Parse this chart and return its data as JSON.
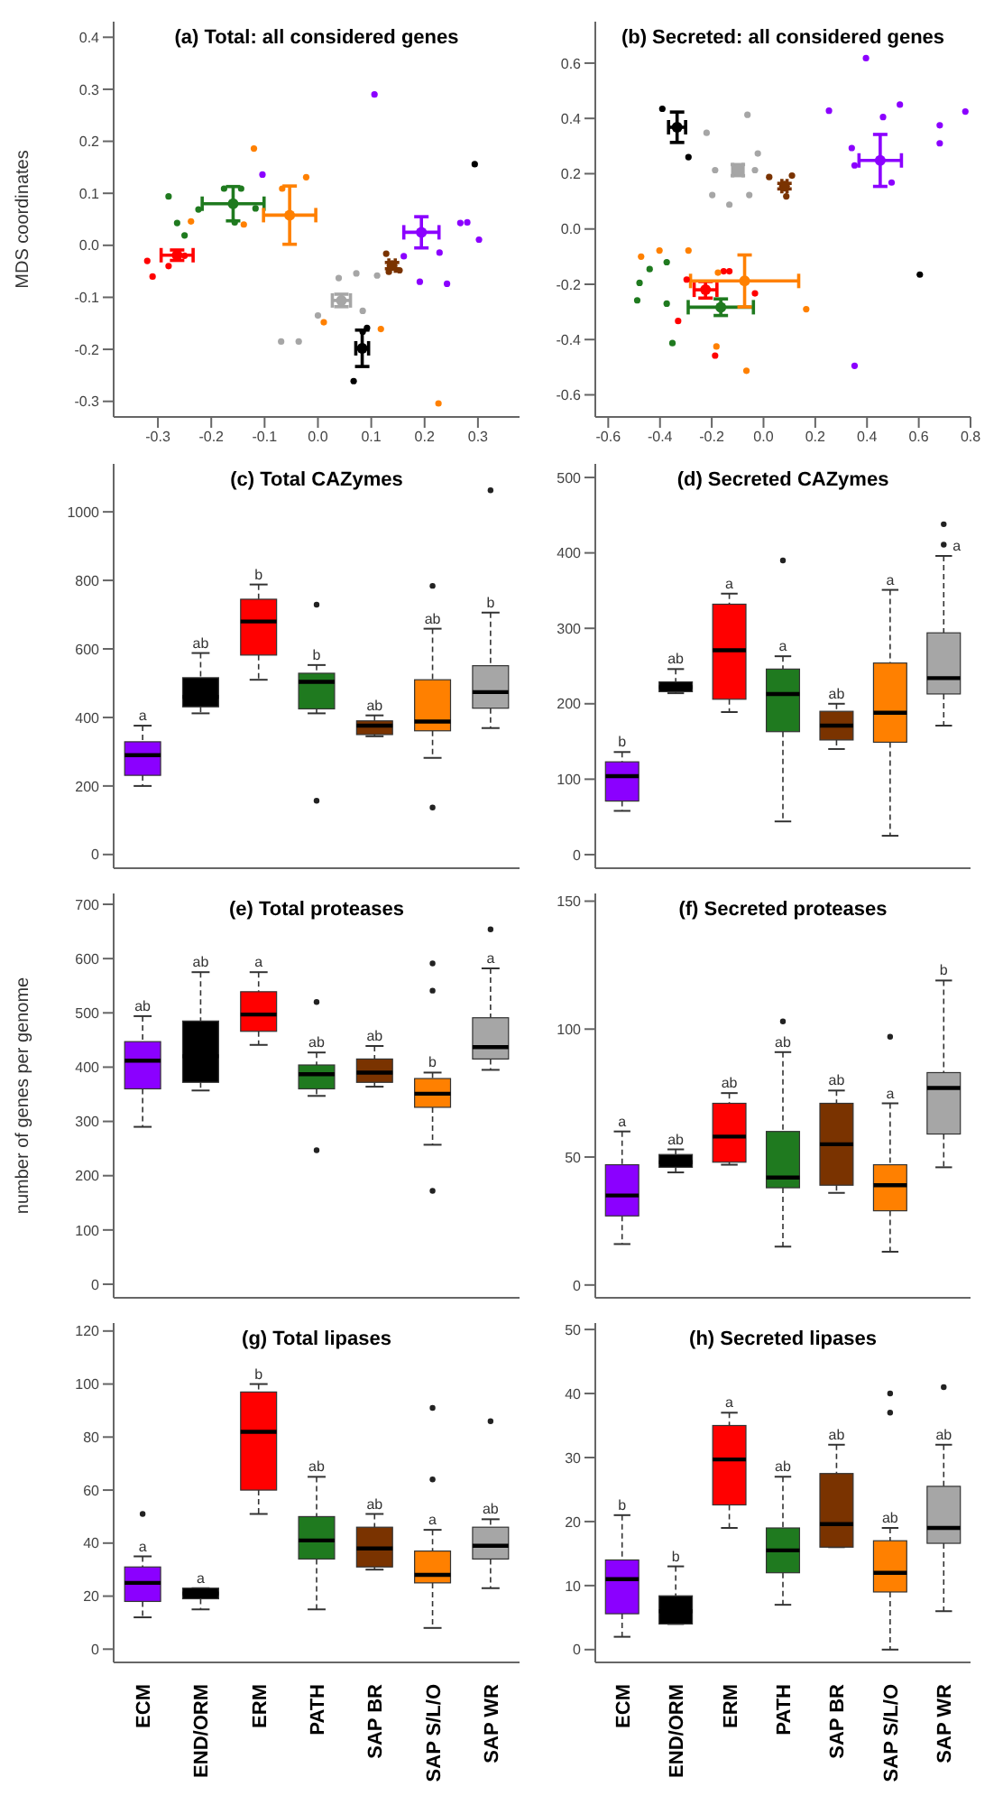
{
  "chart_data": [
    {
      "type": "scatter",
      "title": "(a) Total: all considered genes",
      "ylabel": "MDS coordinates",
      "marker": "circle",
      "xlim": [
        -0.383,
        0.378
      ],
      "ylim": [
        -0.33,
        0.43
      ],
      "xticks": [
        -0.3,
        -0.2,
        -0.1,
        {
          "value": 0,
          "label": "0.0"
        },
        0.1,
        0.2,
        0.3
      ],
      "yticks": [
        -0.3,
        -0.2,
        -0.1,
        {
          "value": 0,
          "label": "0.0"
        },
        0.1,
        0.2,
        0.3,
        0.4
      ],
      "series": [
        {
          "color": "#8b00ff",
          "x": [
            -0.104,
            0.106,
            0.161,
            0.191,
            0.228,
            0.242,
            0.267,
            0.28,
            0.302
          ],
          "values": [
            0.136,
            0.29,
            -0.021,
            -0.07,
            -0.014,
            -0.074,
            0.043,
            0.044,
            0.011
          ]
        },
        {
          "color": "#8b00ff",
          "x": [
            0.194
          ],
          "values": [
            0.025
          ],
          "xerrors": [
            0.033
          ],
          "errors": [
            0.03
          ]
        },
        {
          "color": "#000000",
          "x": [
            0.067,
            0.092,
            0.294,
            0.084
          ],
          "values": [
            -0.261,
            -0.159,
            0.156,
            -0.166
          ]
        },
        {
          "color": "#000000",
          "x": [
            0.083
          ],
          "values": [
            -0.198
          ],
          "xerrors": [
            0.012
          ],
          "errors": [
            0.035
          ]
        },
        {
          "color": "#ff0000",
          "x": [
            -0.32,
            -0.31,
            -0.28,
            -0.25
          ],
          "values": [
            -0.03,
            -0.06,
            -0.04,
            -0.02
          ]
        },
        {
          "color": "#ff0000",
          "x": [
            -0.264
          ],
          "values": [
            -0.019
          ],
          "xerrors": [
            0.03
          ],
          "errors": [
            0.01
          ]
        },
        {
          "color": "#1f7a1f",
          "x": [
            -0.28,
            -0.264,
            -0.25,
            -0.224,
            -0.176,
            -0.144,
            -0.156,
            -0.117
          ],
          "values": [
            0.094,
            0.043,
            0.019,
            0.069,
            0.109,
            0.109,
            0.044,
            0.071
          ]
        },
        {
          "color": "#1f7a1f",
          "x": [
            -0.159
          ],
          "values": [
            0.08
          ],
          "xerrors": [
            0.058
          ],
          "errors": [
            0.033
          ]
        },
        {
          "color": "#7a3300",
          "x": [
            0.128,
            0.133,
            0.153
          ],
          "values": [
            -0.016,
            -0.051,
            -0.048
          ]
        },
        {
          "color": "#7a3300",
          "x": [
            0.139
          ],
          "values": [
            -0.039
          ],
          "xerrors": [
            0.006
          ],
          "errors": [
            0.006
          ]
        },
        {
          "color": "#ff8000",
          "x": [
            -0.12,
            -0.022,
            -0.238,
            -0.139,
            0.011,
            0.118,
            0.226,
            -0.067
          ],
          "values": [
            0.186,
            0.131,
            0.046,
            0.04,
            -0.148,
            -0.161,
            -0.304,
            0.109
          ]
        },
        {
          "color": "#ff8000",
          "x": [
            -0.053
          ],
          "values": [
            0.058
          ],
          "xerrors": [
            0.049
          ],
          "errors": [
            0.056
          ]
        },
        {
          "color": "#a6a6a6",
          "x": [
            -0.069,
            -0.036,
            0.039,
            0.072,
            0,
            0.084,
            0.111
          ],
          "values": [
            -0.185,
            -0.185,
            -0.063,
            -0.054,
            -0.135,
            -0.126,
            -0.058
          ]
        },
        {
          "color": "#a6a6a6",
          "x": [
            0.044
          ],
          "values": [
            -0.106
          ],
          "xerrors": [
            0.017
          ],
          "errors": [
            0.012
          ]
        }
      ]
    },
    {
      "type": "scatter",
      "title": "(b) Secreted: all considered genes",
      "marker": "circle",
      "xlim": [
        -0.65,
        0.8
      ],
      "ylim": [
        -0.68,
        0.75
      ],
      "xticks": [
        -0.6,
        -0.4,
        -0.2,
        {
          "value": 0,
          "label": "0.0"
        },
        0.2,
        0.4,
        0.6,
        0.8
      ],
      "yticks": [
        -0.6,
        -0.4,
        -0.2,
        {
          "value": 0,
          "label": "0.0"
        },
        0.2,
        0.4,
        0.6
      ],
      "series": [
        {
          "color": "#8b00ff",
          "x": [
            0.396,
            0.253,
            0.462,
            0.527,
            0.341,
            0.352,
            0.495,
            0.681,
            0.681,
            0.78,
            0.352
          ],
          "values": [
            0.618,
            0.428,
            0.405,
            0.45,
            0.293,
            0.23,
            0.168,
            0.375,
            0.31,
            0.425,
            -0.495
          ]
        },
        {
          "color": "#8b00ff",
          "x": [
            0.451
          ],
          "values": [
            0.248
          ],
          "xerrors": [
            0.082
          ],
          "errors": [
            0.094
          ]
        },
        {
          "color": "#000000",
          "x": [
            -0.391,
            -0.29,
            0.604
          ],
          "values": [
            0.435,
            0.26,
            -0.165
          ]
        },
        {
          "color": "#000000",
          "x": [
            -0.334
          ],
          "values": [
            0.368
          ],
          "xerrors": [
            0.033
          ],
          "errors": [
            0.055
          ]
        },
        {
          "color": "#ff0000",
          "x": [
            -0.33,
            -0.297,
            -0.187,
            -0.154,
            -0.132,
            -0.033
          ],
          "values": [
            -0.333,
            -0.183,
            -0.458,
            -0.153,
            -0.153,
            -0.233
          ]
        },
        {
          "color": "#ff0000",
          "x": [
            -0.224
          ],
          "values": [
            -0.22
          ],
          "xerrors": [
            0.044
          ],
          "errors": [
            0.03
          ]
        },
        {
          "color": "#1f7a1f",
          "x": [
            -0.488,
            -0.479,
            -0.44,
            -0.374,
            -0.374,
            -0.352
          ],
          "values": [
            -0.258,
            -0.195,
            -0.145,
            -0.12,
            -0.27,
            -0.413
          ]
        },
        {
          "color": "#1f7a1f",
          "x": [
            -0.165
          ],
          "values": [
            -0.283
          ],
          "xerrors": [
            0.126
          ],
          "errors": [
            0.03
          ]
        },
        {
          "color": "#7a3300",
          "x": [
            0.022,
            0.11,
            0.088
          ],
          "values": [
            0.188,
            0.193,
            0.118
          ]
        },
        {
          "color": "#7a3300",
          "x": [
            0.081
          ],
          "values": [
            0.155
          ],
          "xerrors": [
            0.01
          ],
          "errors": [
            0.01
          ]
        },
        {
          "color": "#ff8000",
          "x": [
            -0.473,
            -0.402,
            -0.29,
            -0.182,
            -0.066,
            0.165,
            -0.176
          ],
          "values": [
            -0.1,
            -0.078,
            -0.078,
            -0.425,
            -0.513,
            -0.29,
            -0.158
          ]
        },
        {
          "color": "#ff8000",
          "x": [
            -0.073
          ],
          "values": [
            -0.188
          ],
          "xerrors": [
            0.209
          ],
          "errors": [
            0.094
          ]
        },
        {
          "color": "#a6a6a6",
          "x": [
            -0.22,
            -0.062,
            -0.187,
            -0.198,
            -0.132,
            -0.055,
            -0.022,
            -0.033
          ],
          "values": [
            0.348,
            0.413,
            0.213,
            0.123,
            0.088,
            0.123,
            0.273,
            0.213
          ]
        },
        {
          "color": "#a6a6a6",
          "x": [
            -0.099
          ],
          "values": [
            0.213
          ],
          "xerrors": [
            0.02
          ],
          "errors": [
            0.02
          ]
        }
      ]
    },
    {
      "type": "box",
      "title": "(c) Total CAZymes",
      "tick_labels": "y",
      "categories": [
        "ECM",
        "END/ORM",
        "ERM",
        "PATH",
        "SAP BR",
        "SAP S/L/O",
        "SAP WR"
      ],
      "colors": [
        "#8b00ff",
        "#000000",
        "#ff0000",
        "#1f7a1f",
        "#7a3300",
        "#ff8000",
        "#a6a6a6"
      ],
      "ylim": [
        -40,
        1140
      ],
      "yticks": [
        0,
        200,
        400,
        600,
        800,
        1000
      ],
      "boxes": [
        {
          "low": 200,
          "q1": 231,
          "median": 290,
          "q3": 329,
          "high": 376
        },
        {
          "low": 412,
          "q1": 431,
          "median": 460,
          "q3": 516,
          "high": 588
        },
        {
          "low": 510,
          "q1": 582,
          "median": 680,
          "q3": 745,
          "high": 788
        },
        {
          "low": 412,
          "q1": 425,
          "median": 504,
          "q3": 529,
          "high": 553,
          "outliers": [
            729,
            157
          ]
        },
        {
          "low": 345,
          "q1": 350,
          "median": 376,
          "q3": 390,
          "high": 406
        },
        {
          "low": 282,
          "q1": 361,
          "median": 388,
          "q3": 510,
          "high": 659,
          "outliers": [
            784,
            137
          ]
        },
        {
          "low": 369,
          "q1": 427,
          "median": 474,
          "q3": 551,
          "high": 706,
          "outliers": [
            1063
          ]
        }
      ],
      "annotations": [
        {
          "text": "a",
          "x": "ECM",
          "y": 376
        },
        {
          "text": "ab",
          "x": "END/ORM",
          "y": 588
        },
        {
          "text": "b",
          "x": "ERM",
          "y": 788
        },
        {
          "text": "b",
          "x": "PATH",
          "y": 553
        },
        {
          "text": "ab",
          "x": "SAP BR",
          "y": 406
        },
        {
          "text": "ab",
          "x": "SAP S/L/O",
          "y": 659
        },
        {
          "text": "b",
          "x": "SAP WR",
          "y": 706
        }
      ]
    },
    {
      "type": "box",
      "title": "(d) Secreted CAZymes",
      "tick_labels": "y",
      "categories": [
        "ECM",
        "END/ORM",
        "ERM",
        "PATH",
        "SAP BR",
        "SAP S/L/O",
        "SAP WR"
      ],
      "colors": [
        "#8b00ff",
        "#000000",
        "#ff0000",
        "#1f7a1f",
        "#7a3300",
        "#ff8000",
        "#a6a6a6"
      ],
      "ylim": [
        -18,
        518
      ],
      "yticks": [
        0,
        100,
        200,
        300,
        400,
        500
      ],
      "boxes": [
        {
          "low": 58,
          "q1": 71,
          "median": 104,
          "q3": 123,
          "high": 136
        },
        {
          "low": 214,
          "q1": 216,
          "median": 222,
          "q3": 229,
          "high": 246
        },
        {
          "low": 189,
          "q1": 206,
          "median": 271,
          "q3": 332,
          "high": 346
        },
        {
          "low": 44,
          "q1": 163,
          "median": 213,
          "q3": 246,
          "high": 263,
          "outliers": [
            390
          ]
        },
        {
          "low": 140,
          "q1": 152,
          "median": 171,
          "q3": 190,
          "high": 200
        },
        {
          "low": 25,
          "q1": 149,
          "median": 188,
          "q3": 254,
          "high": 351
        },
        {
          "low": 171,
          "q1": 213,
          "median": 234,
          "q3": 294,
          "high": 396,
          "outliers": [
            411,
            438
          ]
        }
      ],
      "annotations": [
        {
          "text": "b",
          "x": "ECM",
          "y": 136
        },
        {
          "text": "ab",
          "x": "END/ORM",
          "y": 246
        },
        {
          "text": "a",
          "x": "ERM",
          "y": 346
        },
        {
          "text": "a",
          "x": "PATH",
          "y": 263
        },
        {
          "text": "ab",
          "x": "SAP BR",
          "y": 200
        },
        {
          "text": "a",
          "x": "SAP S/L/O",
          "y": 351
        },
        {
          "text": "a",
          "x": "SAP WR",
          "y": 396
        }
      ]
    },
    {
      "type": "box",
      "title": "(e) Total proteases",
      "ylabel": "number of genes per genome",
      "tick_labels": "y",
      "categories": [
        "ECM",
        "END/ORM",
        "ERM",
        "PATH",
        "SAP BR",
        "SAP S/L/O",
        "SAP WR"
      ],
      "colors": [
        "#8b00ff",
        "#000000",
        "#ff0000",
        "#1f7a1f",
        "#7a3300",
        "#ff8000",
        "#a6a6a6"
      ],
      "ylim": [
        -25,
        720
      ],
      "yticks": [
        0,
        100,
        200,
        300,
        400,
        500,
        600,
        700
      ],
      "boxes": [
        {
          "low": 290,
          "q1": 360,
          "median": 412,
          "q3": 447,
          "high": 494
        },
        {
          "low": 357,
          "q1": 372,
          "median": 420,
          "q3": 485,
          "high": 575
        },
        {
          "low": 441,
          "q1": 466,
          "median": 497,
          "q3": 539,
          "high": 575
        },
        {
          "low": 347,
          "q1": 360,
          "median": 387,
          "q3": 404,
          "high": 427,
          "outliers": [
            520,
            247
          ]
        },
        {
          "low": 364,
          "q1": 372,
          "median": 390,
          "q3": 415,
          "high": 439
        },
        {
          "low": 257,
          "q1": 326,
          "median": 351,
          "q3": 379,
          "high": 390,
          "outliers": [
            591,
            541,
            172
          ]
        },
        {
          "low": 395,
          "q1": 415,
          "median": 437,
          "q3": 491,
          "high": 582,
          "outliers": [
            654
          ]
        }
      ],
      "annotations": [
        {
          "text": "ab",
          "x": "ECM",
          "y": 494
        },
        {
          "text": "ab",
          "x": "END/ORM",
          "y": 575
        },
        {
          "text": "a",
          "x": "ERM",
          "y": 575
        },
        {
          "text": "ab",
          "x": "PATH",
          "y": 427
        },
        {
          "text": "ab",
          "x": "SAP BR",
          "y": 439
        },
        {
          "text": "b",
          "x": "SAP S/L/O",
          "y": 390
        },
        {
          "text": "a",
          "x": "SAP WR",
          "y": 582
        }
      ]
    },
    {
      "type": "box",
      "title": "(f) Secreted proteases",
      "tick_labels": "y",
      "categories": [
        "ECM",
        "END/ORM",
        "ERM",
        "PATH",
        "SAP BR",
        "SAP S/L/O",
        "SAP WR"
      ],
      "colors": [
        "#8b00ff",
        "#000000",
        "#ff0000",
        "#1f7a1f",
        "#7a3300",
        "#ff8000",
        "#a6a6a6"
      ],
      "ylim": [
        -5,
        153
      ],
      "yticks": [
        0,
        50,
        100,
        150
      ],
      "boxes": [
        {
          "low": 16,
          "q1": 27,
          "median": 35,
          "q3": 47,
          "high": 60
        },
        {
          "low": 44,
          "q1": 46,
          "median": 48,
          "q3": 51,
          "high": 53
        },
        {
          "low": 47,
          "q1": 48,
          "median": 58,
          "q3": 71,
          "high": 75
        },
        {
          "low": 15,
          "q1": 38,
          "median": 42,
          "q3": 60,
          "high": 91,
          "outliers": [
            103
          ]
        },
        {
          "low": 36,
          "q1": 39,
          "median": 55,
          "q3": 71,
          "high": 76
        },
        {
          "low": 13,
          "q1": 29,
          "median": 39,
          "q3": 47,
          "high": 71,
          "outliers": [
            97
          ]
        },
        {
          "low": 46,
          "q1": 59,
          "median": 77,
          "q3": 83,
          "high": 119
        }
      ],
      "annotations": [
        {
          "text": "a",
          "x": "ECM",
          "y": 60
        },
        {
          "text": "ab",
          "x": "END/ORM",
          "y": 53
        },
        {
          "text": "ab",
          "x": "ERM",
          "y": 75
        },
        {
          "text": "ab",
          "x": "PATH",
          "y": 91
        },
        {
          "text": "ab",
          "x": "SAP BR",
          "y": 76
        },
        {
          "text": "a",
          "x": "SAP S/L/O",
          "y": 71
        },
        {
          "text": "b",
          "x": "SAP WR",
          "y": 119
        }
      ]
    },
    {
      "type": "box",
      "title": "(g) Total lipases",
      "categories": [
        "ECM",
        "END/ORM",
        "ERM",
        "PATH",
        "SAP BR",
        "SAP S/L/O",
        "SAP WR"
      ],
      "colors": [
        "#8b00ff",
        "#000000",
        "#ff0000",
        "#1f7a1f",
        "#7a3300",
        "#ff8000",
        "#a6a6a6"
      ],
      "ylim": [
        -5,
        123
      ],
      "yticks": [
        0,
        20,
        40,
        60,
        80,
        100,
        120
      ],
      "boxes": [
        {
          "low": 12,
          "q1": 18,
          "median": 25,
          "q3": 31,
          "high": 35,
          "outliers": [
            51
          ]
        },
        {
          "low": 15,
          "q1": 19,
          "median": 21,
          "q3": 23,
          "high": 23
        },
        {
          "low": 51,
          "q1": 60,
          "median": 82,
          "q3": 97,
          "high": 100
        },
        {
          "low": 15,
          "q1": 34,
          "median": 41,
          "q3": 50,
          "high": 65
        },
        {
          "low": 30,
          "q1": 31,
          "median": 38,
          "q3": 46,
          "high": 51
        },
        {
          "low": 8,
          "q1": 25,
          "median": 28,
          "q3": 37,
          "high": 45,
          "outliers": [
            91,
            64
          ]
        },
        {
          "low": 23,
          "q1": 34,
          "median": 39,
          "q3": 46,
          "high": 49,
          "outliers": [
            86
          ]
        }
      ],
      "annotations": [
        {
          "text": "a",
          "x": "ECM",
          "y": 35
        },
        {
          "text": "a",
          "x": "END/ORM",
          "y": 23
        },
        {
          "text": "b",
          "x": "ERM",
          "y": 100
        },
        {
          "text": "ab",
          "x": "PATH",
          "y": 65
        },
        {
          "text": "ab",
          "x": "SAP BR",
          "y": 51
        },
        {
          "text": "a",
          "x": "SAP S/L/O",
          "y": 45
        },
        {
          "text": "ab",
          "x": "SAP WR",
          "y": 49
        }
      ]
    },
    {
      "type": "box",
      "title": "(h) Secreted lipases",
      "categories": [
        "ECM",
        "END/ORM",
        "ERM",
        "PATH",
        "SAP BR",
        "SAP S/L/O",
        "SAP WR"
      ],
      "colors": [
        "#8b00ff",
        "#000000",
        "#ff0000",
        "#1f7a1f",
        "#7a3300",
        "#ff8000",
        "#a6a6a6"
      ],
      "ylim": [
        -2,
        51
      ],
      "yticks": [
        0,
        10,
        20,
        30,
        40,
        50
      ],
      "boxes": [
        {
          "low": 2,
          "q1": 5.6,
          "median": 11,
          "q3": 14,
          "high": 21
        },
        {
          "low": 4,
          "q1": 4,
          "median": 6,
          "q3": 8.4,
          "high": 13
        },
        {
          "low": 19,
          "q1": 22.6,
          "median": 29.7,
          "q3": 35,
          "high": 37
        },
        {
          "low": 7,
          "q1": 12,
          "median": 15.5,
          "q3": 19,
          "high": 27
        },
        {
          "low": 16,
          "q1": 16,
          "median": 19.6,
          "q3": 27.5,
          "high": 32
        },
        {
          "low": 0,
          "q1": 9,
          "median": 12,
          "q3": 17,
          "high": 19,
          "outliers": [
            40,
            37
          ]
        },
        {
          "low": 6,
          "q1": 16.6,
          "median": 19,
          "q3": 25.5,
          "high": 32,
          "outliers": [
            41
          ]
        }
      ],
      "annotations": [
        {
          "text": "b",
          "x": "ECM",
          "y": 21
        },
        {
          "text": "b",
          "x": "END/ORM",
          "y": 13
        },
        {
          "text": "a",
          "x": "ERM",
          "y": 37
        },
        {
          "text": "ab",
          "x": "PATH",
          "y": 27
        },
        {
          "text": "ab",
          "x": "SAP BR",
          "y": 32
        },
        {
          "text": "ab",
          "x": "SAP S/L/O",
          "y": 19
        },
        {
          "text": "ab",
          "x": "SAP WR",
          "y": 32
        }
      ]
    }
  ]
}
